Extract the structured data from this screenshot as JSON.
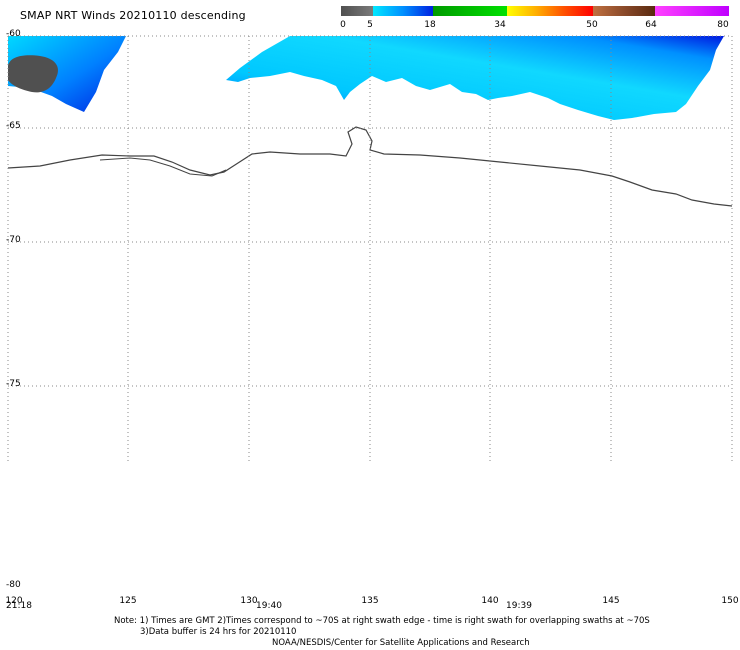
{
  "title": "SMAP NRT Winds  20210110 descending",
  "color_scale": {
    "labels": [
      "0",
      "5",
      "18",
      "34",
      "50",
      "64",
      "80"
    ],
    "segments": [
      {
        "from": 0,
        "to": 5,
        "colors": [
          "#505050",
          "#7a7a7a"
        ]
      },
      {
        "from": 5,
        "to": 18,
        "colors": [
          "#00e8ff",
          "#0090ff",
          "#0020e0"
        ]
      },
      {
        "from": 18,
        "to": 34,
        "colors": [
          "#009a00",
          "#00e000"
        ]
      },
      {
        "from": 34,
        "to": 50,
        "colors": [
          "#ffff00",
          "#ffb000",
          "#ff5000",
          "#ff0000"
        ]
      },
      {
        "from": 50,
        "to": 64,
        "colors": [
          "#c07040",
          "#8a4a2a",
          "#5a2a10"
        ]
      },
      {
        "from": 64,
        "to": 80,
        "colors": [
          "#ff40ff",
          "#c000ff"
        ]
      }
    ]
  },
  "map": {
    "lat_labels": [
      "-60",
      "-65",
      "-70",
      "-75",
      "-80"
    ],
    "lon_labels": [
      "120",
      "125",
      "130",
      "135",
      "140",
      "145",
      "150"
    ],
    "time_labels": [
      "21:18",
      "19:40",
      "19:39"
    ]
  },
  "notes": {
    "line1": "Note: 1) Times are GMT 2)Times correspond to ~70S at right swath edge - time is right swath for overlapping swaths at ~70S",
    "line2": "3)Data buffer is 24 hrs for 20210110",
    "line3": "NOAA/NESDIS/Center for Satellite Applications and Research"
  },
  "colors": {
    "land": "#505050",
    "coast": "#444444",
    "grid": "#888888",
    "wind_low": "#00e8ff",
    "wind_high": "#0020e0"
  }
}
